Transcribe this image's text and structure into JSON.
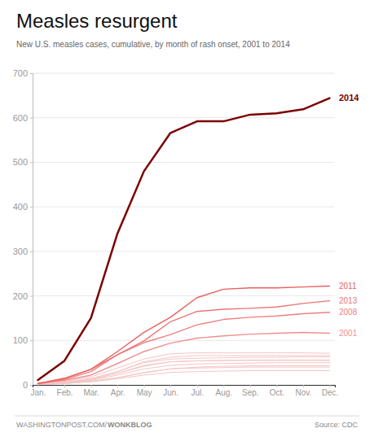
{
  "chart_data": {
    "type": "line",
    "title": "Measles resurgent",
    "subtitle": "New U.S. measles cases, cumulative, by month of rash onset, 2001 to 2014",
    "annotations": [
      "WASHINGTONPOST.COM/",
      "WONKBLOG",
      "Source: CDC"
    ],
    "categories": [
      "Jan.",
      "Feb.",
      "Mar.",
      "Apr.",
      "May",
      "Jun.",
      "Jul.",
      "Aug.",
      "Sep.",
      "Oct.",
      "Nov.",
      "Dec."
    ],
    "series": [
      {
        "color": "#f5c5c5",
        "values": [
          2,
          6,
          14,
          30,
          52,
          62,
          66,
          66,
          66,
          66,
          66,
          66
        ]
      },
      {
        "color": "#f5c5c5",
        "values": [
          1,
          5,
          12,
          26,
          42,
          52,
          54,
          55,
          56,
          56,
          56,
          56
        ]
      },
      {
        "color": "#f5c5c5",
        "values": [
          1,
          3,
          8,
          16,
          28,
          36,
          38,
          39,
          40,
          40,
          40,
          40
        ]
      },
      {
        "color": "#f5c5c5",
        "values": [
          1,
          4,
          10,
          22,
          36,
          44,
          47,
          48,
          49,
          50,
          50,
          50
        ]
      },
      {
        "color": "#f5c5c5",
        "values": [
          1,
          3,
          8,
          16,
          27,
          36,
          40,
          42,
          43,
          43,
          43,
          43
        ]
      },
      {
        "color": "#f5c5c5",
        "values": [
          2,
          8,
          18,
          38,
          58,
          70,
          72,
          72,
          72,
          72,
          72,
          71
        ]
      },
      {
        "color": "#f5c5c5",
        "values": [
          2,
          6,
          14,
          30,
          50,
          58,
          60,
          61,
          62,
          62,
          63,
          63
        ]
      },
      {
        "color": "#f5c5c5",
        "values": [
          1,
          5,
          12,
          26,
          44,
          52,
          54,
          55,
          55,
          55,
          55,
          55
        ]
      },
      {
        "color": "#f5c5c5",
        "values": [
          1,
          3,
          7,
          14,
          22,
          28,
          30,
          31,
          32,
          32,
          32,
          32
        ]
      },
      {
        "name": "2001",
        "color": "#f09090",
        "values": [
          4,
          10,
          22,
          48,
          75,
          94,
          105,
          110,
          114,
          116,
          118,
          116
        ]
      },
      {
        "name": "2008",
        "color": "#ee8080",
        "values": [
          2,
          12,
          30,
          68,
          95,
          113,
          135,
          147,
          152,
          155,
          160,
          163
        ]
      },
      {
        "name": "2013",
        "color": "#ec7575",
        "values": [
          3,
          14,
          35,
          68,
          99,
          142,
          165,
          170,
          172,
          175,
          183,
          189
        ]
      },
      {
        "name": "2011",
        "color": "#e86060",
        "values": [
          3,
          15,
          35,
          75,
          118,
          152,
          196,
          215,
          218,
          218,
          220,
          222
        ]
      },
      {
        "name": "2014",
        "color": "#7b0000",
        "values": [
          11,
          54,
          150,
          340,
          480,
          566,
          592,
          592,
          607,
          610,
          619,
          644
        ]
      }
    ],
    "ylim": [
      0,
      700
    ],
    "yticks": [
      0,
      100,
      200,
      300,
      400,
      500,
      600,
      700
    ],
    "grid": true
  }
}
